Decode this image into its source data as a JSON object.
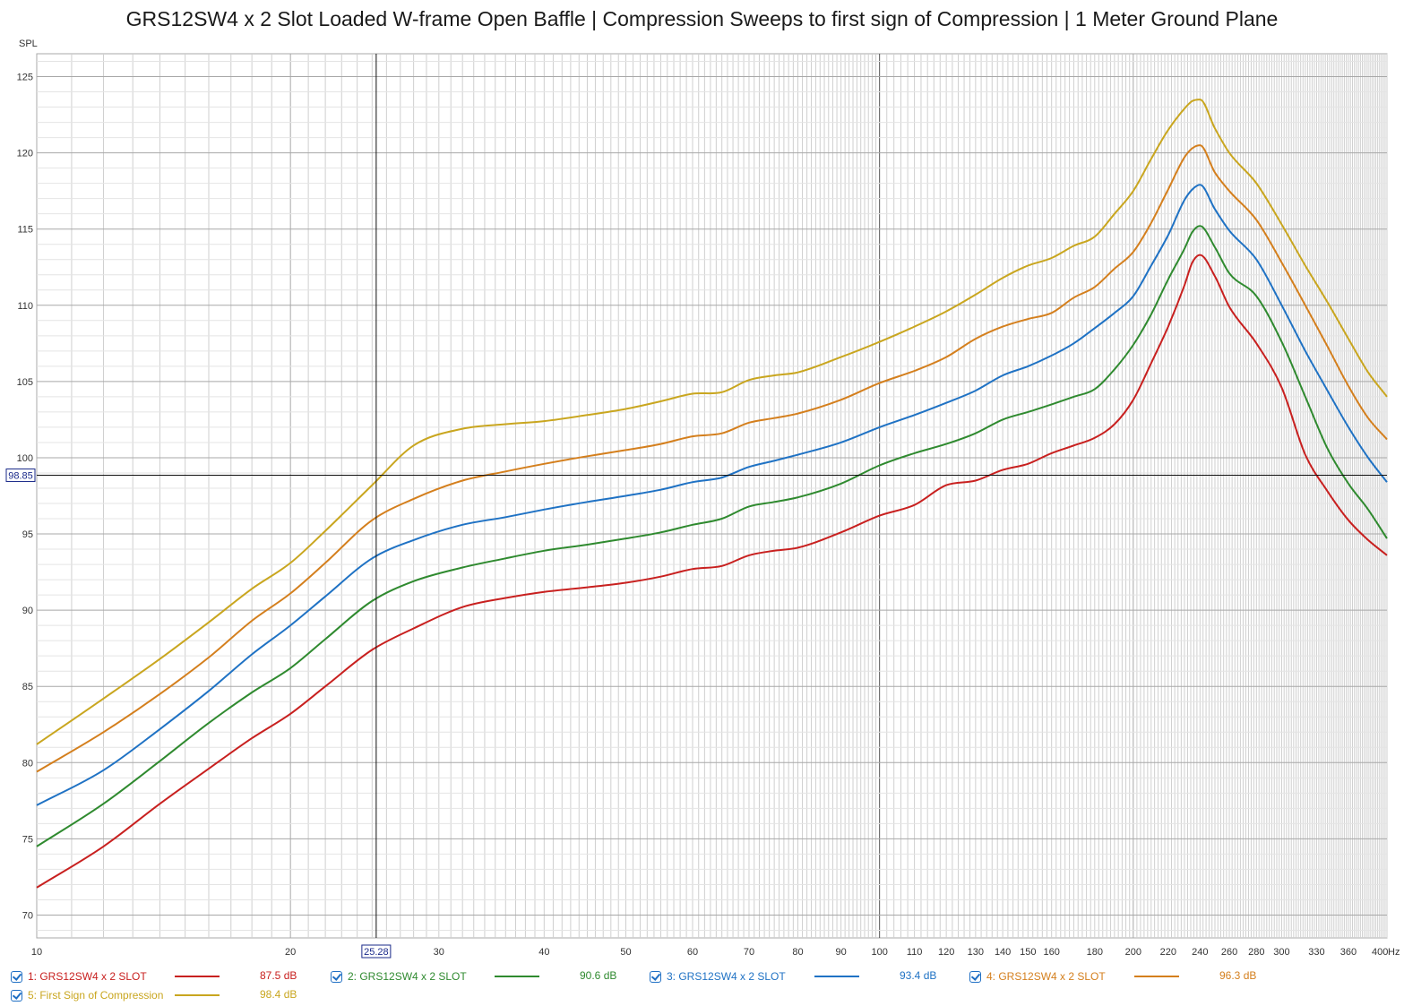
{
  "title": "GRS12SW4 x 2 Slot Loaded W-frame Open Baffle | Compression Sweeps to first sign of Compression | 1 Meter Ground Plane",
  "colors": {
    "grid": "#cfcfcf",
    "grid_major": "#a8a8a8",
    "background": "#ffffff"
  },
  "cursor": {
    "x_label": "25.28",
    "y_label": "98.85",
    "x": 25.28,
    "y": 98.85
  },
  "chart_data": {
    "type": "line",
    "ylabel": "SPL",
    "xunit": "Hz",
    "xscale": "log",
    "xlim": [
      10,
      400
    ],
    "ylim": [
      68.5,
      126.5
    ],
    "grid": true,
    "legend_position": "bottom",
    "x_tick_values": [
      10,
      20,
      25.28,
      30,
      40,
      50,
      60,
      70,
      80,
      90,
      100,
      110,
      120,
      130,
      140,
      150,
      160,
      180,
      200,
      220,
      240,
      260,
      280,
      300,
      330,
      360,
      400
    ],
    "x_tick_labels": [
      "10",
      "20",
      "25.28",
      "30",
      "40",
      "50",
      "60",
      "70",
      "80",
      "90",
      "100",
      "110",
      "120",
      "130",
      "140",
      "150",
      "160",
      "180",
      "200",
      "220",
      "240",
      "260",
      "280",
      "300",
      "330",
      "360",
      "400"
    ],
    "y_ticks": [
      70,
      75,
      80,
      85,
      90,
      95,
      100,
      105,
      110,
      115,
      120,
      125
    ],
    "y_tick_labels": [
      "70",
      "75",
      "80",
      "85",
      "90",
      "95",
      "100",
      "105",
      "110",
      "115",
      "120",
      "125"
    ],
    "x": [
      10,
      12,
      14,
      16,
      18,
      20,
      22,
      25,
      28,
      32,
      36,
      40,
      45,
      50,
      55,
      60,
      65,
      70,
      75,
      80,
      90,
      100,
      110,
      120,
      130,
      140,
      150,
      160,
      170,
      180,
      190,
      200,
      210,
      220,
      230,
      235,
      240,
      250,
      260,
      280,
      300,
      320,
      340,
      360,
      380,
      400
    ],
    "series": [
      {
        "name": "1: GRS12SW4 x 2 SLOT",
        "level": "87.5 dB",
        "color": "#c8201f",
        "values": [
          71.8,
          74.5,
          77.3,
          79.6,
          81.6,
          83.2,
          85.0,
          87.4,
          88.8,
          90.2,
          90.8,
          91.2,
          91.5,
          91.8,
          92.2,
          92.7,
          92.9,
          93.6,
          93.9,
          94.1,
          95.1,
          96.2,
          96.9,
          98.2,
          98.5,
          99.2,
          99.6,
          100.3,
          100.8,
          101.3,
          102.2,
          103.8,
          106.2,
          108.6,
          111.3,
          112.8,
          113.3,
          111.9,
          109.9,
          107.5,
          104.6,
          100.2,
          97.8,
          95.9,
          94.6,
          93.6
        ]
      },
      {
        "name": "2: GRS12SW4 x 2 SLOT",
        "level": "90.6 dB",
        "color": "#2f8a2f",
        "values": [
          74.5,
          77.3,
          80.1,
          82.6,
          84.6,
          86.2,
          88.1,
          90.6,
          91.9,
          92.8,
          93.4,
          93.9,
          94.3,
          94.7,
          95.1,
          95.6,
          96.0,
          96.8,
          97.1,
          97.4,
          98.3,
          99.5,
          100.3,
          100.9,
          101.6,
          102.5,
          103.0,
          103.5,
          104.0,
          104.5,
          105.8,
          107.4,
          109.4,
          111.7,
          113.7,
          114.8,
          115.2,
          113.8,
          112.1,
          110.6,
          107.6,
          104.0,
          100.6,
          98.3,
          96.6,
          94.7
        ]
      },
      {
        "name": "3: GRS12SW4 x 2 SLOT",
        "level": "93.4 dB",
        "color": "#1f72c4",
        "values": [
          77.2,
          79.5,
          82.2,
          84.7,
          87.1,
          89.0,
          90.9,
          93.4,
          94.6,
          95.6,
          96.1,
          96.6,
          97.1,
          97.5,
          97.9,
          98.4,
          98.7,
          99.4,
          99.8,
          100.2,
          101.0,
          102.0,
          102.8,
          103.6,
          104.4,
          105.4,
          106.0,
          106.7,
          107.5,
          108.5,
          109.5,
          110.6,
          112.6,
          114.6,
          116.9,
          117.6,
          117.9,
          116.3,
          114.9,
          113.0,
          110.0,
          107.0,
          104.4,
          102.0,
          100.0,
          98.4
        ]
      },
      {
        "name": "4: GRS12SW4 x 2 SLOT",
        "level": "96.3 dB",
        "color": "#d47f1d",
        "values": [
          79.4,
          82.0,
          84.5,
          86.9,
          89.3,
          91.1,
          93.1,
          95.9,
          97.3,
          98.5,
          99.1,
          99.6,
          100.1,
          100.5,
          100.9,
          101.4,
          101.6,
          102.3,
          102.6,
          102.9,
          103.8,
          104.9,
          105.7,
          106.6,
          107.8,
          108.6,
          109.1,
          109.5,
          110.5,
          111.2,
          112.4,
          113.5,
          115.4,
          117.6,
          119.7,
          120.3,
          120.5,
          118.7,
          117.5,
          115.6,
          112.8,
          110.0,
          107.3,
          104.7,
          102.6,
          101.2
        ]
      },
      {
        "name": "5: First Sign of Compression",
        "level": "98.4 dB",
        "color": "#c9a61f",
        "values": [
          81.2,
          84.2,
          86.8,
          89.2,
          91.4,
          93.1,
          95.2,
          98.2,
          100.8,
          101.9,
          102.2,
          102.4,
          102.8,
          103.2,
          103.7,
          104.2,
          104.3,
          105.1,
          105.4,
          105.6,
          106.6,
          107.6,
          108.6,
          109.6,
          110.7,
          111.8,
          112.6,
          113.1,
          113.9,
          114.5,
          116.0,
          117.5,
          119.6,
          121.5,
          122.9,
          123.4,
          123.5,
          121.6,
          120.0,
          118.0,
          115.3,
          112.6,
          110.2,
          107.8,
          105.6,
          104.0
        ]
      }
    ]
  }
}
